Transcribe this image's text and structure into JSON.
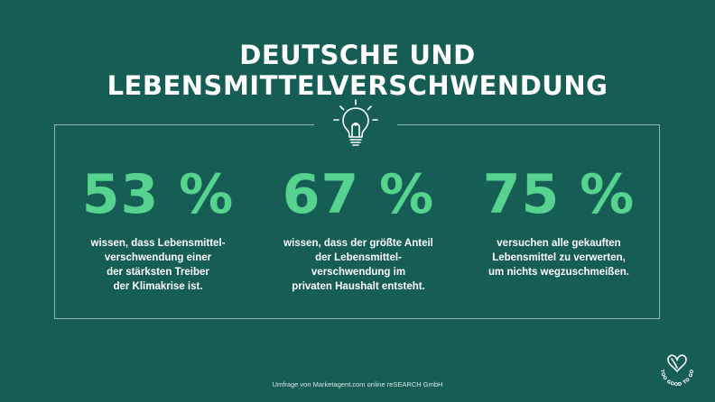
{
  "title": "DEUTSCHE UND LEBENSMITTELVERSCHWENDUNG",
  "icon": "lightbulb-icon",
  "colors": {
    "background": "#155d55",
    "accent": "#56d48f",
    "text": "#ffffff"
  },
  "stats": [
    {
      "value": "53 %",
      "description": "wissen, dass Lebensmittel-\nverschwendung einer\nder stärksten Treiber\nder Klimakrise ist."
    },
    {
      "value": "67 %",
      "description": "wissen, dass der größte Anteil\nder Lebensmittel-\nverschwendung im\nprivaten Haushalt entsteht."
    },
    {
      "value": "75 %",
      "description": "versuchen alle gekauften\nLebensmittel zu verwerten,\num nichts wegzuschmeißen."
    }
  ],
  "footer": "Umfrage von Marketagent.com online reSEARCH GmbH",
  "logo": {
    "text": "TOO GOOD TO GO"
  }
}
